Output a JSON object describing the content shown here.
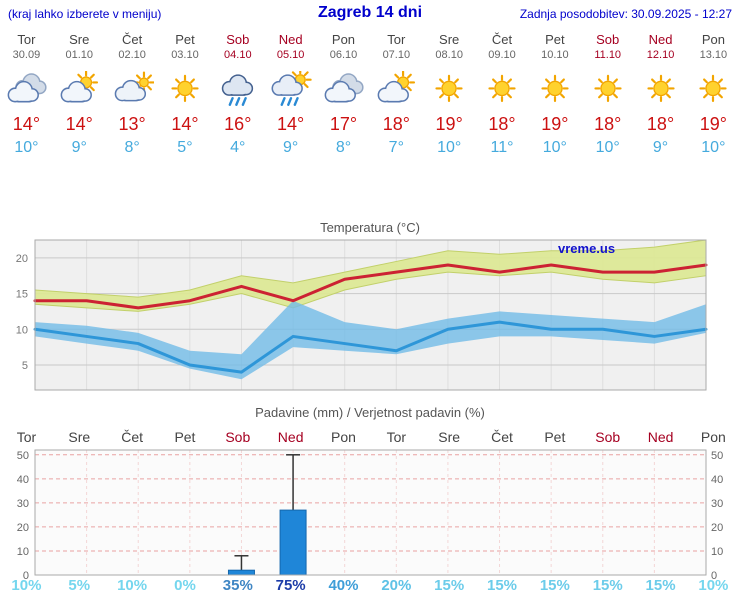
{
  "header": {
    "hint": "(kraj lahko izberete v meniju)",
    "title": "Zagreb 14 dni",
    "updated": "Zadnja posodobitev: 30.09.2025 - 12:27"
  },
  "colors": {
    "header_blue": "#0000cc",
    "weekend_red": "#a50021",
    "day_gray": "#444444",
    "date_gray": "#666666",
    "high_red": "#cc1111",
    "low_blue": "#45aadd",
    "line_red": "#cc2233",
    "line_blue": "#2e96d8",
    "band_green": "#dce896",
    "band_blue": "#74bce6",
    "bar_blue": "#1f86d8",
    "watermark_blue": "#1111cc"
  },
  "forecast": {
    "days": [
      {
        "name": "Tor",
        "date": "30.09",
        "icon": "cloudy",
        "high": 14,
        "low": 10
      },
      {
        "name": "Sre",
        "date": "01.10",
        "icon": "partly-cloudy",
        "high": 14,
        "low": 9
      },
      {
        "name": "Čet",
        "date": "02.10",
        "icon": "mostly-cloudy",
        "high": 13,
        "low": 8
      },
      {
        "name": "Pet",
        "date": "03.10",
        "icon": "sunny",
        "high": 14,
        "low": 5
      },
      {
        "name": "Sob",
        "date": "04.10",
        "icon": "rain",
        "high": 16,
        "low": 4
      },
      {
        "name": "Ned",
        "date": "05.10",
        "icon": "sun-rain",
        "high": 14,
        "low": 9
      },
      {
        "name": "Pon",
        "date": "06.10",
        "icon": "cloudy",
        "high": 17,
        "low": 8
      },
      {
        "name": "Tor",
        "date": "07.10",
        "icon": "partly-cloudy",
        "high": 18,
        "low": 7
      },
      {
        "name": "Sre",
        "date": "08.10",
        "icon": "sunny",
        "high": 19,
        "low": 10
      },
      {
        "name": "Čet",
        "date": "09.10",
        "icon": "sunny",
        "high": 18,
        "low": 11
      },
      {
        "name": "Pet",
        "date": "10.10",
        "icon": "sunny",
        "high": 19,
        "low": 10
      },
      {
        "name": "Sob",
        "date": "11.10",
        "icon": "sunny",
        "high": 18,
        "low": 10
      },
      {
        "name": "Ned",
        "date": "12.10",
        "icon": "sunny",
        "high": 18,
        "low": 9
      },
      {
        "name": "Pon",
        "date": "13.10",
        "icon": "sunny",
        "high": 19,
        "low": 10
      }
    ]
  },
  "chart_data": [
    {
      "type": "line",
      "title": "Temperatura (°C)",
      "watermark": "vreme.us",
      "ylim": [
        1.5,
        22.5
      ],
      "yticks": [
        5,
        10,
        15,
        20
      ],
      "grid": true,
      "series": [
        {
          "name": "max temperature",
          "color": "#cc2233",
          "values": [
            14,
            14,
            13,
            14,
            16,
            14,
            17,
            18,
            19,
            18,
            19,
            18,
            18,
            19
          ]
        },
        {
          "name": "min temperature",
          "color": "#2e96d8",
          "values": [
            10,
            9,
            8,
            5,
            4,
            9,
            8,
            7,
            10,
            11,
            10,
            10,
            9,
            10
          ]
        }
      ],
      "bands": [
        {
          "name": "max range",
          "color": "#dce896",
          "upper": [
            15.5,
            15,
            14.5,
            15.5,
            17.5,
            16.5,
            18,
            19.5,
            21,
            20.5,
            21,
            21,
            21.5,
            22.5
          ],
          "lower": [
            13.5,
            13,
            12.5,
            13.5,
            15,
            13,
            15.5,
            17,
            18,
            17.5,
            18,
            17,
            16.5,
            17.5
          ]
        },
        {
          "name": "min range",
          "color": "#74bce6",
          "upper": [
            11,
            10.5,
            9.5,
            7,
            6.5,
            14,
            11,
            10,
            11.5,
            12.5,
            12,
            11.5,
            11,
            13.5
          ],
          "lower": [
            9,
            8,
            7,
            4.5,
            3,
            7.5,
            7,
            6.5,
            8,
            9,
            9,
            8.5,
            8,
            9.5
          ]
        }
      ]
    },
    {
      "type": "bar",
      "title": "Padavine (mm) / Verjetnost padavin (%)",
      "categories": [
        "Tor",
        "Sre",
        "Čet",
        "Pet",
        "Sob",
        "Ned",
        "Pon",
        "Tor",
        "Sre",
        "Čet",
        "Pet",
        "Sob",
        "Ned",
        "Pon"
      ],
      "values": [
        0,
        0,
        0,
        0,
        2,
        27,
        0,
        0,
        0,
        0,
        0,
        0,
        0,
        0
      ],
      "whisker_max": [
        0,
        0,
        0,
        0,
        8,
        50,
        0,
        0,
        0,
        0,
        0,
        0,
        0,
        0
      ],
      "ylim": [
        0,
        52
      ],
      "yticks": [
        0,
        10,
        20,
        30,
        40,
        50
      ],
      "probabilities": [
        {
          "label": "10%",
          "color": "#74d6ee"
        },
        {
          "label": "5%",
          "color": "#74d6ee"
        },
        {
          "label": "10%",
          "color": "#74d6ee"
        },
        {
          "label": "0%",
          "color": "#74d6ee"
        },
        {
          "label": "35%",
          "color": "#3f86c4"
        },
        {
          "label": "75%",
          "color": "#1c3ca8",
          "bold": true
        },
        {
          "label": "40%",
          "color": "#3f9ed8"
        },
        {
          "label": "20%",
          "color": "#5ec2e6"
        },
        {
          "label": "15%",
          "color": "#6cccea"
        },
        {
          "label": "15%",
          "color": "#6cccea"
        },
        {
          "label": "15%",
          "color": "#6cccea"
        },
        {
          "label": "15%",
          "color": "#6cccea"
        },
        {
          "label": "15%",
          "color": "#6cccea"
        },
        {
          "label": "10%",
          "color": "#74d6ee"
        }
      ]
    }
  ]
}
